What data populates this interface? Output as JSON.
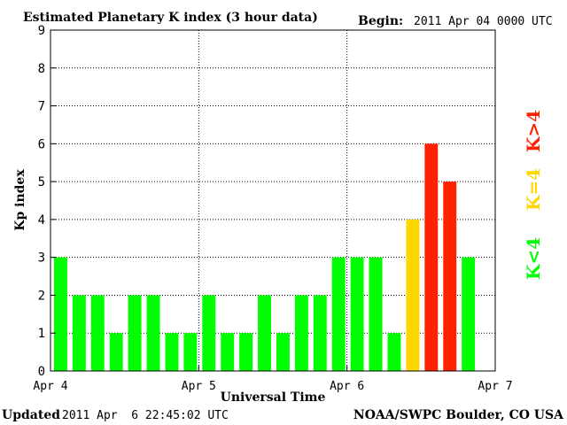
{
  "header": {
    "title": "Estimated Planetary K index (3 hour data)",
    "begin_label": "Begin:",
    "begin_value": "2011 Apr 04 0000 UTC"
  },
  "footer": {
    "updated_label": "Updated",
    "updated_value": "2011 Apr  6 22:45:02 UTC",
    "source": "NOAA/SWPC Boulder, CO USA"
  },
  "colors": {
    "low": "#00ff00",
    "moderate": "#ffd700",
    "high": "#ff2200"
  },
  "chart_data": {
    "type": "bar",
    "xlabel": "Universal Time",
    "ylabel": "Kp index",
    "ylim": [
      0,
      9
    ],
    "yticks": [
      0,
      1,
      2,
      3,
      4,
      5,
      6,
      7,
      8,
      9
    ],
    "xlim": [
      0,
      72
    ],
    "xticks": [
      {
        "value": 0,
        "label": "Apr 4"
      },
      {
        "value": 24,
        "label": "Apr 5"
      },
      {
        "value": 48,
        "label": "Apr 6"
      },
      {
        "value": 72,
        "label": "Apr 7"
      }
    ],
    "grid": true,
    "bin_hours": 3,
    "values": [
      3,
      2,
      2,
      1,
      2,
      2,
      1,
      1,
      2,
      1,
      1,
      2,
      1,
      2,
      2,
      3,
      3,
      3,
      1,
      4,
      6,
      5,
      3
    ],
    "legend": [
      {
        "label": "K<4",
        "color": "#00ff00"
      },
      {
        "label": "K=4",
        "color": "#ffd700"
      },
      {
        "label": "K>4",
        "color": "#ff2200"
      }
    ]
  }
}
